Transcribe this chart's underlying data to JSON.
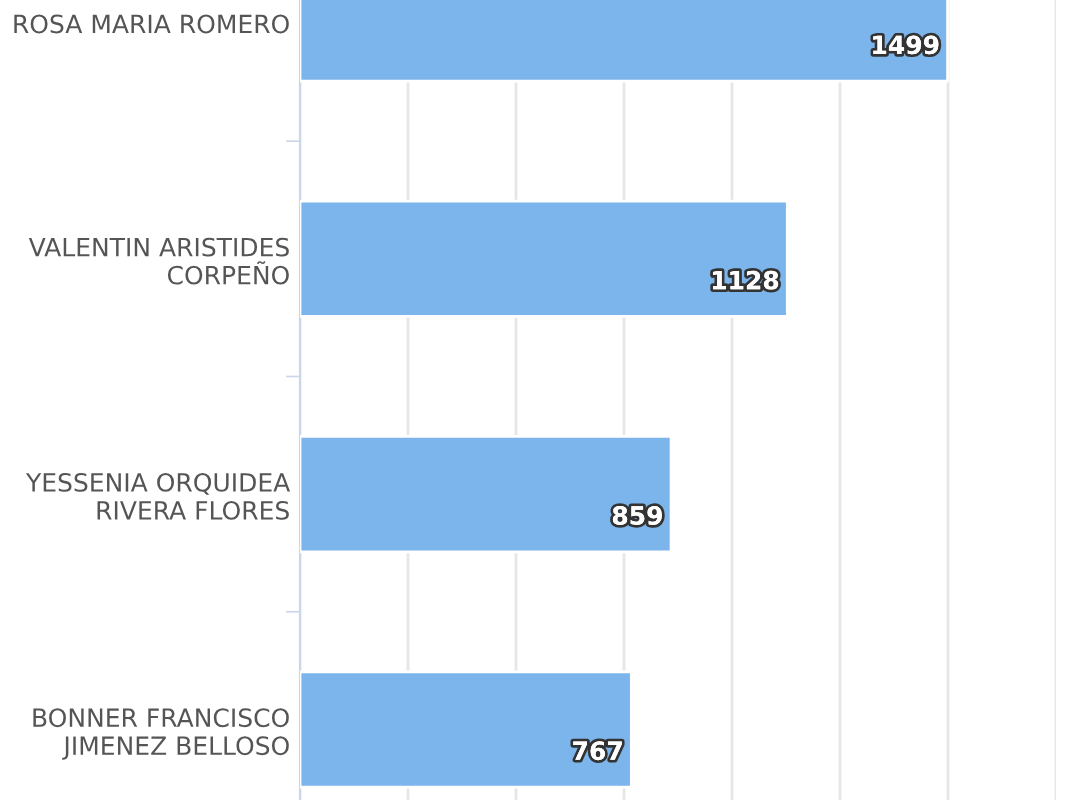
{
  "chart_data": {
    "type": "bar",
    "orientation": "horizontal",
    "categories": [
      "ROSA MARIA ROMERO",
      "VALENTIN ARISTIDES\nCORPEÑO",
      "YESSENIA ORQUIDEA\nRIVERA FLORES",
      "BONNER FRANCISCO\nJIMENEZ BELLOSO"
    ],
    "values": [
      1499,
      1128,
      859,
      767
    ],
    "color": "#7cb5ec",
    "xlim": [
      0,
      1750
    ],
    "xticks": [
      {
        "value": 0,
        "label": null
      },
      {
        "value": 250,
        "label": null
      },
      {
        "value": 500,
        "label": null
      },
      {
        "value": 750,
        "label": null
      },
      {
        "value": 1000,
        "label": null
      },
      {
        "value": 1250,
        "label": null
      },
      {
        "value": 1500,
        "label": null
      },
      {
        "value": 1750,
        "label": null
      }
    ],
    "tick_labels": "y",
    "grid": "x",
    "data_labels": true,
    "legend": false
  }
}
